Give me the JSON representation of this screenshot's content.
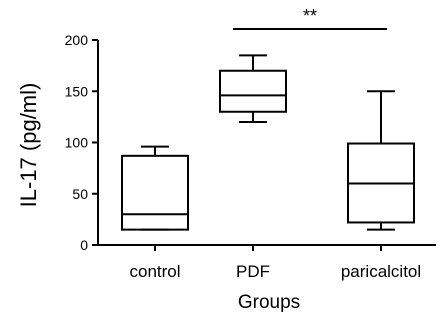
{
  "chart_data": {
    "type": "box",
    "xlabel": "Groups",
    "ylabel": "IL-17 (pg/ml)",
    "ylim": [
      0,
      200
    ],
    "yticks": [
      0,
      50,
      100,
      150,
      200
    ],
    "categories": [
      "control",
      "PDF",
      "paricalcitol"
    ],
    "boxes": [
      {
        "category": "control",
        "min": 15,
        "q1": 15,
        "median": 30,
        "q3": 87,
        "max": 96
      },
      {
        "category": "PDF",
        "min": 120,
        "q1": 130,
        "median": 146,
        "q3": 170,
        "max": 185
      },
      {
        "category": "paricalcitol",
        "min": 15,
        "q1": 22,
        "median": 60,
        "q3": 99,
        "max": 150
      }
    ],
    "significance": {
      "from": "PDF",
      "to": "paricalcitol",
      "label": "**"
    },
    "grid": false,
    "legend": "none"
  }
}
